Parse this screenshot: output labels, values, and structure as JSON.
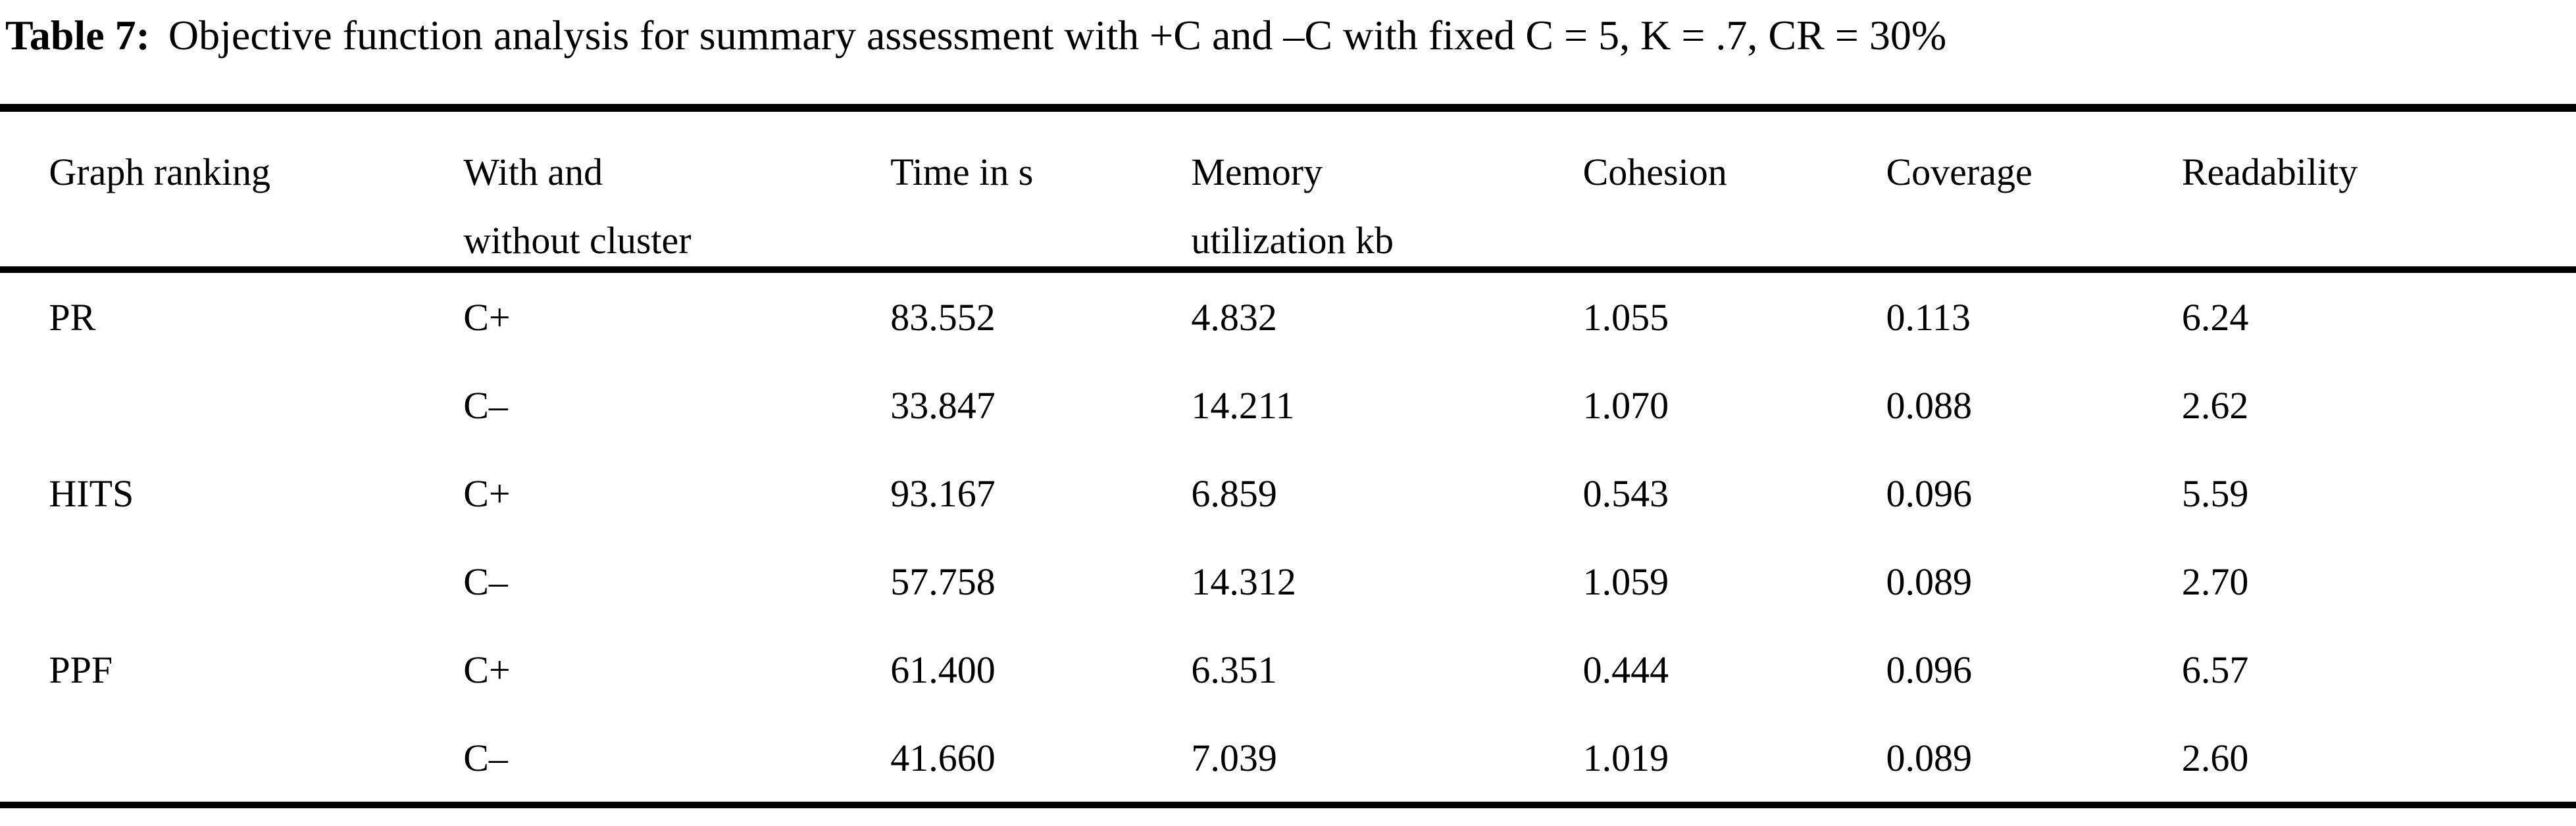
{
  "title": {
    "label": "Table 7:",
    "text": "Objective function analysis for summary assessment with +C and –C with fixed C = 5, K = .7, CR = 30%"
  },
  "header": {
    "graph_ranking": [
      "Graph ranking"
    ],
    "cluster": [
      "With and",
      "without cluster"
    ],
    "time": [
      "Time in s"
    ],
    "memory": [
      "Memory",
      "utilization kb"
    ],
    "cohesion": [
      "Cohesion"
    ],
    "coverage": [
      "Coverage"
    ],
    "readability": [
      "Readability"
    ]
  },
  "rows": [
    {
      "ranking": "PR",
      "cluster": "C+",
      "time": "83.552",
      "memory": "4.832",
      "cohesion": "1.055",
      "coverage": "0.113",
      "readability": "6.24"
    },
    {
      "ranking": "",
      "cluster": "C–",
      "time": "33.847",
      "memory": "14.211",
      "cohesion": "1.070",
      "coverage": "0.088",
      "readability": "2.62"
    },
    {
      "ranking": "HITS",
      "cluster": "C+",
      "time": "93.167",
      "memory": "6.859",
      "cohesion": "0.543",
      "coverage": "0.096",
      "readability": "5.59"
    },
    {
      "ranking": "",
      "cluster": "C–",
      "time": "57.758",
      "memory": "14.312",
      "cohesion": "1.059",
      "coverage": "0.089",
      "readability": "2.70"
    },
    {
      "ranking": "PPF",
      "cluster": "C+",
      "time": "61.400",
      "memory": "6.351",
      "cohesion": "0.444",
      "coverage": "0.096",
      "readability": "6.57"
    },
    {
      "ranking": "",
      "cluster": "C–",
      "time": "41.660",
      "memory": "7.039",
      "cohesion": "1.019",
      "coverage": "0.089",
      "readability": "2.60"
    }
  ],
  "colors": {
    "text": "#000000",
    "background": "#ffffff",
    "rule": "#000000"
  }
}
